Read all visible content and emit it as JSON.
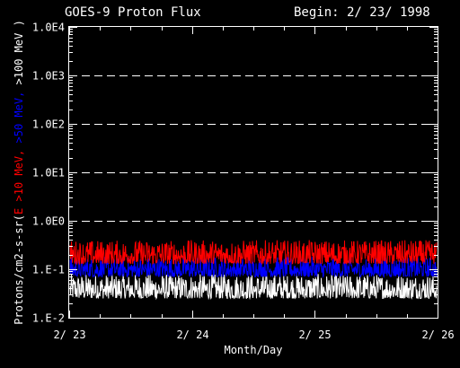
{
  "chart_data": {
    "type": "line",
    "title": "GOES-9 Proton Flux",
    "subtitle": "Begin: 2/ 23/ 1998",
    "xlabel": "Month/Day",
    "ylabel_parts": [
      {
        "text": "Protons/cm2-s-sr(",
        "color": "#ffffff"
      },
      {
        "text": "E >10 MeV, ",
        "color": "#ff0000"
      },
      {
        "text": ">50 MeV, ",
        "color": "#0000ff"
      },
      {
        "text": ">100 MeV )",
        "color": "#ffffff"
      }
    ],
    "x_ticks": [
      {
        "value": 0,
        "label": "2/ 23"
      },
      {
        "value": 1,
        "label": "2/ 24"
      },
      {
        "value": 2,
        "label": "2/ 25"
      },
      {
        "value": 3,
        "label": "2/ 26"
      }
    ],
    "xlim": [
      0,
      3
    ],
    "y_scale": "log",
    "ylim": [
      0.01,
      10000
    ],
    "y_ticks": [
      {
        "value": 0.01,
        "label": "1.E-2"
      },
      {
        "value": 0.1,
        "label": "1.E-1"
      },
      {
        "value": 1,
        "label": "1.0E0"
      },
      {
        "value": 10,
        "label": "1.0E1"
      },
      {
        "value": 100,
        "label": "1.0E2"
      },
      {
        "value": 1000,
        "label": "1.0E3"
      },
      {
        "value": 10000,
        "label": "1.0E4"
      }
    ],
    "dashed_gridlines": [
      1,
      10,
      100,
      1000
    ],
    "series": [
      {
        "color": "#ffffff",
        "typical_range": [
          0.025,
          0.08
        ]
      },
      {
        "color": "#0000ff",
        "typical_range": [
          0.07,
          0.18
        ]
      },
      {
        "color": "#ff0000",
        "typical_range": [
          0.13,
          0.4
        ]
      }
    ]
  }
}
